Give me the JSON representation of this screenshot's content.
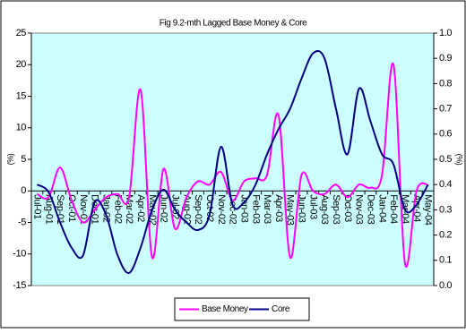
{
  "chart_data": {
    "type": "line",
    "title": "Fig 9.2-mth Lagged Base Money & Core",
    "y_label": "(%)",
    "y2_label": "(%)",
    "categories": [
      "Jul-01",
      "Aug-01",
      "Sep-01",
      "Oct-01",
      "Nov-01",
      "Dec-01",
      "Jan-02",
      "Feb-02",
      "Mar-02",
      "Apr-02",
      "May-02",
      "Jun-02",
      "Jul-02",
      "Aug-02",
      "Sep-02",
      "Oct-02",
      "Nov-02",
      "Dec-02",
      "Jan-03",
      "Feb-03",
      "Mar-03",
      "Apr-03",
      "May-03",
      "Jun-03",
      "Jul-03",
      "Aug-03",
      "Sep-03",
      "Oct-03",
      "Nov-03",
      "Dec-03",
      "Jan-04",
      "Feb-04",
      "Mar-04",
      "Apr-04",
      "May-04"
    ],
    "series": [
      {
        "name": "Base Money",
        "color": "#ff00ff",
        "values": [
          -0.5,
          -1,
          3.7,
          -1.5,
          -5,
          -3,
          -1,
          -0.5,
          -1,
          16,
          -10.5,
          3.5,
          -6,
          -1,
          1.5,
          1,
          3,
          -1.5,
          1.5,
          2,
          2.5,
          12,
          -10.5,
          2.5,
          0,
          -0.5,
          1,
          -1,
          1,
          0.5,
          2.5,
          20,
          -11.5,
          0,
          1
        ]
      },
      {
        "name": "Core",
        "color": "#000080",
        "axis": "y2",
        "values": [
          0.4,
          0.37,
          0.25,
          0.15,
          0.12,
          0.33,
          0.28,
          0.12,
          0.05,
          0.15,
          0.3,
          0.38,
          0.3,
          0.25,
          0.22,
          0.28,
          0.55,
          0.32,
          0.33,
          0.4,
          0.52,
          0.62,
          0.7,
          0.82,
          0.92,
          0.9,
          0.7,
          0.52,
          0.78,
          0.65,
          0.52,
          0.48,
          0.3,
          0.32,
          0.4
        ]
      }
    ],
    "ylim": [
      -15,
      25
    ],
    "yticks": [
      -15,
      -10,
      -5,
      0,
      5,
      10,
      15,
      20,
      25
    ],
    "y2lim": [
      0,
      1
    ],
    "y2ticks": [
      {
        "value": 0,
        "label": "0.0"
      },
      0.1,
      0.2,
      0.3,
      0.4,
      0.5,
      0.6,
      0.7,
      0.8,
      0.9,
      {
        "value": 1,
        "label": "1.0"
      }
    ],
    "legend": "bottom"
  }
}
